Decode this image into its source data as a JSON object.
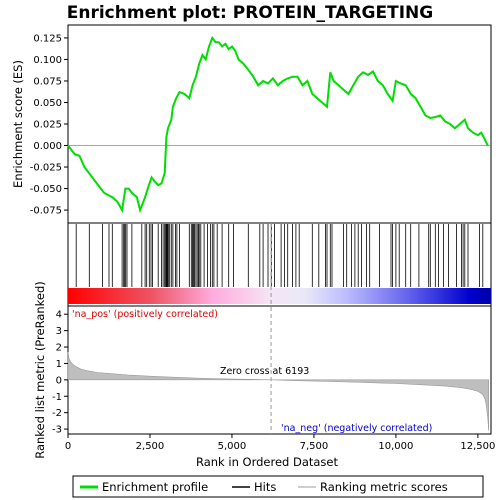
{
  "chart_data": {
    "type": "line",
    "title": "Enrichment plot: PROTEIN_TARGETING",
    "xlabel": "Rank in Ordered Dataset",
    "xlim": [
      0,
      12900
    ],
    "x_ticks": [
      0,
      2500,
      5000,
      7500,
      10000,
      12500
    ],
    "x_tick_labels": [
      "0",
      "2,500",
      "5,000",
      "7,500",
      "10,000",
      "12,500"
    ],
    "panels": {
      "enrichment": {
        "ylabel": "Enrichment score (ES)",
        "ylim": [
          -0.09,
          0.14
        ],
        "y_ticks": [
          -0.075,
          -0.05,
          -0.025,
          0.0,
          0.025,
          0.05,
          0.075,
          0.1,
          0.125
        ],
        "y_tick_labels": [
          "-0.075",
          "-0.050",
          "-0.025",
          "0.000",
          "0.025",
          "0.050",
          "0.075",
          "0.100",
          "0.125"
        ],
        "zero_line": true
      },
      "ranked_metric": {
        "ylabel": "Ranked list metric (PreRanked)",
        "ylim": [
          -3.3,
          4.5
        ],
        "y_ticks": [
          -3,
          -2,
          -1,
          0,
          1,
          2,
          3,
          4
        ],
        "y_tick_labels": [
          "-3",
          "-2",
          "-1",
          "0",
          "1",
          "2",
          "3",
          "4"
        ]
      }
    },
    "series": [
      {
        "name": "Enrichment profile",
        "color": "#00dd00",
        "x": [
          0,
          200,
          350,
          500,
          700,
          900,
          1100,
          1250,
          1350,
          1500,
          1650,
          1750,
          1850,
          1950,
          2100,
          2200,
          2350,
          2450,
          2550,
          2650,
          2750,
          2850,
          2950,
          3000,
          3050,
          3100,
          3150,
          3200,
          3300,
          3400,
          3550,
          3700,
          3800,
          3900,
          4000,
          4100,
          4200,
          4300,
          4400,
          4500,
          4600,
          4700,
          4800,
          4900,
          5000,
          5100,
          5200,
          5350,
          5500,
          5650,
          5800,
          5950,
          6100,
          6250,
          6400,
          6550,
          6700,
          6850,
          7000,
          7150,
          7300,
          7450,
          7600,
          7750,
          7900,
          8000,
          8100,
          8250,
          8400,
          8550,
          8700,
          8850,
          9000,
          9150,
          9300,
          9450,
          9600,
          9750,
          9900,
          10000,
          10150,
          10300,
          10450,
          10600,
          10750,
          10900,
          11050,
          11200,
          11350,
          11500,
          11650,
          11800,
          11950,
          12100,
          12200,
          12350,
          12500,
          12600,
          12700,
          12800
        ],
        "y": [
          0.0,
          -0.01,
          -0.012,
          -0.025,
          -0.035,
          -0.045,
          -0.055,
          -0.058,
          -0.06,
          -0.065,
          -0.075,
          -0.05,
          -0.05,
          -0.055,
          -0.06,
          -0.075,
          -0.06,
          -0.048,
          -0.037,
          -0.042,
          -0.046,
          -0.044,
          -0.032,
          0.01,
          0.02,
          0.025,
          0.03,
          0.045,
          0.055,
          0.062,
          0.06,
          0.055,
          0.07,
          0.08,
          0.095,
          0.105,
          0.1,
          0.115,
          0.125,
          0.12,
          0.12,
          0.115,
          0.118,
          0.112,
          0.115,
          0.11,
          0.1,
          0.095,
          0.088,
          0.08,
          0.07,
          0.075,
          0.072,
          0.078,
          0.07,
          0.075,
          0.078,
          0.08,
          0.08,
          0.07,
          0.075,
          0.06,
          0.055,
          0.05,
          0.045,
          0.085,
          0.075,
          0.07,
          0.065,
          0.06,
          0.07,
          0.08,
          0.085,
          0.082,
          0.086,
          0.075,
          0.07,
          0.06,
          0.052,
          0.075,
          0.072,
          0.07,
          0.06,
          0.055,
          0.045,
          0.035,
          0.032,
          0.033,
          0.035,
          0.028,
          0.025,
          0.02,
          0.025,
          0.03,
          0.02,
          0.015,
          0.012,
          0.015,
          0.008,
          0.0
        ]
      },
      {
        "name": "Hits",
        "color": "#000000",
        "hit_ranks": [
          250,
          650,
          1050,
          1250,
          1350,
          1650,
          1700,
          1730,
          1760,
          1800,
          1950,
          2250,
          2350,
          2400,
          2480,
          2530,
          2580,
          2750,
          2850,
          2900,
          2950,
          2980,
          3000,
          3020,
          3040,
          3060,
          3100,
          3150,
          3200,
          3280,
          3320,
          3400,
          3700,
          3760,
          3800,
          3830,
          3860,
          3900,
          3940,
          3980,
          4000,
          4050,
          4150,
          4250,
          4350,
          4400,
          4450,
          4550,
          4700,
          4900,
          5050,
          5500,
          5850,
          5950,
          6100,
          6200,
          6300,
          6500,
          6600,
          6700,
          6850,
          6950,
          7050,
          7450,
          7650,
          7850,
          7900,
          8000,
          8050,
          8400,
          8500,
          8650,
          8750,
          8850,
          8950,
          9100,
          9200,
          9500,
          9850,
          9900,
          10000,
          10100,
          10300,
          10450,
          10700,
          11000,
          11050,
          11200,
          11300,
          11450,
          11600,
          11850,
          12000,
          12050,
          12100,
          12200,
          12550,
          12650
        ]
      },
      {
        "name": "Ranking metric scores",
        "color": "#bebebe",
        "x": [
          0,
          30,
          80,
          150,
          250,
          400,
          600,
          900,
          1300,
          1800,
          2500,
          3200,
          4000,
          5000,
          6193,
          7000,
          8000,
          9000,
          10000,
          10800,
          11500,
          12000,
          12300,
          12500,
          12650,
          12720,
          12760,
          12800,
          12830
        ],
        "y": [
          1.7,
          1.3,
          1.1,
          0.95,
          0.8,
          0.65,
          0.55,
          0.45,
          0.38,
          0.3,
          0.22,
          0.16,
          0.1,
          0.05,
          0.0,
          -0.05,
          -0.1,
          -0.16,
          -0.22,
          -0.3,
          -0.38,
          -0.48,
          -0.58,
          -0.7,
          -0.9,
          -1.2,
          -1.6,
          -2.3,
          -3.1
        ]
      }
    ],
    "annotations": {
      "pos_label": "'na_pos' (positively correlated)",
      "neg_label": "'na_neg' (negatively correlated)",
      "zero_cross_label": "Zero cross at 6193",
      "zero_cross_rank": 6193,
      "pos_color": "#dd0000",
      "neg_color": "#0000cc"
    },
    "legend": {
      "placement": "bottom",
      "items": [
        "Enrichment profile",
        "Hits",
        "Ranking metric scores"
      ]
    }
  }
}
